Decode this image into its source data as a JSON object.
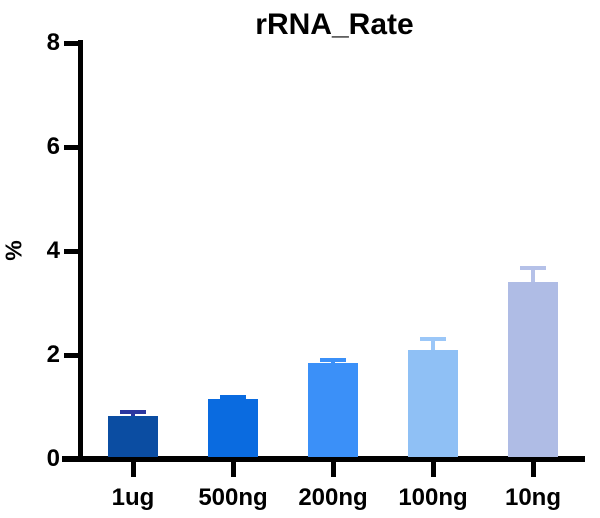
{
  "chart_data": {
    "type": "bar",
    "title": "rRNA_Rate",
    "xlabel": "",
    "ylabel": "%",
    "ylim": [
      0,
      8
    ],
    "yticks": [
      0,
      2,
      4,
      6,
      8
    ],
    "grid": false,
    "legend_position": "none",
    "categories": [
      "1ug",
      "500ng",
      "200ng",
      "100ng",
      "10ng"
    ],
    "series": [
      {
        "name": "rRNA_Rate",
        "values": [
          0.82,
          1.15,
          1.85,
          2.1,
          3.4
        ],
        "errors": [
          0.08,
          0.04,
          0.05,
          0.2,
          0.27
        ]
      }
    ],
    "bar_colors": [
      "#0B4DA2",
      "#0A6BE0",
      "#3B90F8",
      "#8FC0F5",
      "#AFBCE5"
    ],
    "error_bar_colors": [
      "#2B37A0",
      "#0A6BE0",
      "#3B90F8",
      "#9BC7F8",
      "#B5C1E8"
    ],
    "axis_color": "#000000",
    "title_color": "#000000"
  }
}
